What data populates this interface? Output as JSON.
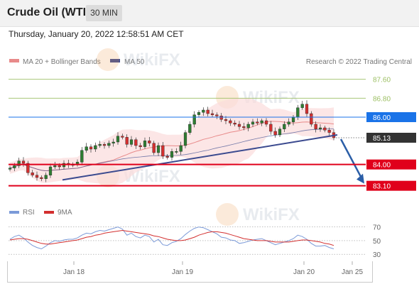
{
  "header": {
    "title": "Crude Oil (WTI)",
    "interval": "30 MIN",
    "timestamp": "Thursday, January 20, 2022 12:58:51 AM CET"
  },
  "legend": {
    "ma20_label": "MA 20 + Bollinger Bands",
    "ma50_label": "MA 50",
    "rsi_label": "RSI",
    "rsi_ma_label": "9MA",
    "copyright": "Research © 2022 Trading Central"
  },
  "watermark": "WikiFX",
  "colors": {
    "up": "#2e7d32",
    "down": "#d32f2f",
    "ma20": "#e88a8a",
    "ma50": "#3b4a8f",
    "bollinger": "#fbdcdc",
    "support": "#e0001b",
    "resistance_green": "#9cbf63",
    "pivot_blue": "#1a73e8",
    "price_tag": "#333333",
    "trendline": "#3b4a8f",
    "arrow": "#2b5ea7",
    "rsi": "#7b9ad8",
    "rsi_ma": "#d32f2f"
  },
  "chart_data": [
    {
      "type": "candlestick",
      "title": "Crude Oil (WTI)",
      "xlabel": "",
      "ylabel": "",
      "ylim": [
        82.85,
        88.1
      ],
      "x_ticks": [
        "Jan 18",
        "Jan 19",
        "Jan 20",
        "Jan 25"
      ],
      "series": [
        {
          "name": "MA 20 + Bollinger Bands",
          "kind": "band"
        },
        {
          "name": "MA 50",
          "kind": "line"
        }
      ],
      "price_levels": [
        {
          "value": 87.6,
          "label": "87.60",
          "style": "resistance"
        },
        {
          "value": 86.8,
          "label": "86.80",
          "style": "resistance"
        },
        {
          "value": 86.0,
          "label": "86.00",
          "style": "pivot"
        },
        {
          "value": 85.13,
          "label": "85.13",
          "style": "last-price"
        },
        {
          "value": 84.0,
          "label": "84.00",
          "style": "support"
        },
        {
          "value": 83.1,
          "label": "83.10",
          "style": "support"
        }
      ],
      "close_path": [
        83.85,
        83.95,
        84.15,
        84.05,
        83.65,
        83.55,
        83.45,
        83.4,
        83.55,
        83.9,
        83.95,
        83.9,
        84.05,
        84.0,
        84.0,
        84.1,
        84.6,
        84.75,
        84.65,
        84.8,
        84.85,
        84.8,
        84.9,
        84.95,
        85.2,
        85.15,
        84.85,
        85.05,
        84.8,
        84.75,
        85.0,
        84.9,
        84.5,
        84.8,
        84.35,
        84.3,
        84.55,
        84.55,
        84.8,
        85.35,
        85.7,
        86.1,
        86.2,
        86.3,
        86.15,
        86.1,
        86.05,
        85.9,
        85.85,
        85.75,
        85.7,
        85.6,
        85.55,
        85.7,
        85.8,
        85.75,
        85.85,
        85.7,
        85.4,
        85.25,
        85.5,
        85.7,
        85.8,
        86.0,
        86.4,
        86.55,
        86.15,
        85.7,
        85.5,
        85.55,
        85.45,
        85.35,
        85.13
      ],
      "trendline": {
        "from": 83.35,
        "to": 85.25
      },
      "projection": {
        "from": 85.13,
        "to": 83.1
      }
    },
    {
      "type": "line",
      "title": "",
      "ylim": [
        25,
        78
      ],
      "y_ticks": [
        70,
        50,
        30
      ],
      "series": [
        {
          "name": "RSI",
          "values": [
            52,
            56,
            58,
            54,
            48,
            43,
            40,
            38,
            42,
            47,
            50,
            49,
            51,
            52,
            52,
            54,
            58,
            61,
            60,
            63,
            65,
            64,
            66,
            68,
            70,
            67,
            58,
            61,
            56,
            54,
            58,
            56,
            48,
            52,
            44,
            43,
            47,
            49,
            53,
            59,
            64,
            68,
            70,
            69,
            66,
            63,
            60,
            55,
            54,
            51,
            50,
            46,
            47,
            49,
            51,
            52,
            53,
            50,
            47,
            44,
            46,
            48,
            50,
            53,
            58,
            56,
            52,
            46,
            42,
            42,
            43,
            40,
            38
          ]
        },
        {
          "name": "9MA",
          "values": [
            51,
            52,
            53,
            53,
            52,
            50,
            48,
            46,
            45,
            45,
            46,
            47,
            48,
            49,
            50,
            51,
            53,
            55,
            56,
            58,
            59,
            61,
            62,
            63,
            64,
            65,
            64,
            63,
            62,
            61,
            60,
            59,
            57,
            56,
            54,
            52,
            51,
            50,
            50,
            51,
            53,
            55,
            58,
            60,
            62,
            63,
            63,
            62,
            61,
            59,
            57,
            55,
            53,
            52,
            51,
            50,
            50,
            50,
            49,
            48,
            48,
            48,
            48,
            49,
            50,
            51,
            51,
            50,
            49,
            48,
            46,
            45,
            43
          ]
        }
      ]
    }
  ]
}
